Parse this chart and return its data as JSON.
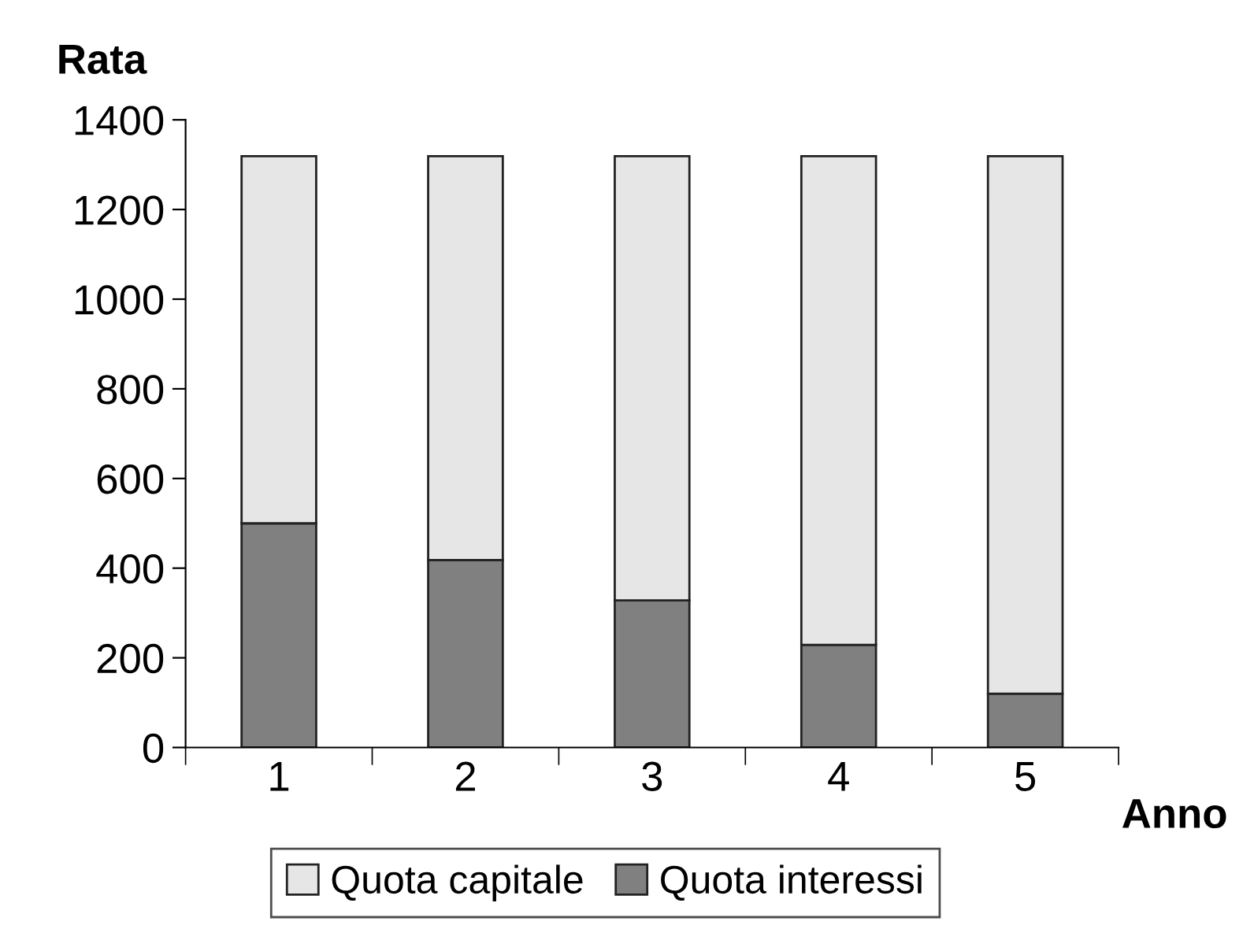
{
  "chart_data": {
    "type": "bar",
    "stacked": true,
    "ylabel": "Rata",
    "xlabel": "Anno",
    "categories": [
      "1",
      "2",
      "3",
      "4",
      "5"
    ],
    "series": [
      {
        "name": "Quota interessi",
        "color": "#808080",
        "values": [
          500,
          418,
          328,
          229,
          120
        ]
      },
      {
        "name": "Quota capitale",
        "color": "#e6e6e6",
        "values": [
          819,
          901,
          991,
          1090,
          1199
        ]
      }
    ],
    "ylim": [
      0,
      1400
    ],
    "yticks": [
      0,
      200,
      400,
      600,
      800,
      1000,
      1200,
      1400
    ],
    "grid": false,
    "legend": "bottom"
  }
}
